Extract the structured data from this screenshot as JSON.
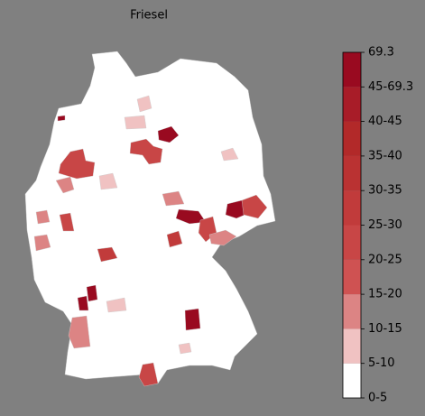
{
  "title": "Friesel",
  "legend": {
    "labels": [
      "0-5",
      "5-10",
      "10-15",
      "15-20",
      "20-25",
      "25-30",
      "30-35",
      "35-40",
      "40-45",
      "45-69.3",
      "69.3"
    ],
    "colors": [
      "#ffffff",
      "#f0c2c2",
      "#dc8484",
      "#cf5252",
      "#c84646",
      "#c13b3b",
      "#ba3232",
      "#b22929",
      "#a81c28",
      "#990a20"
    ]
  }
}
